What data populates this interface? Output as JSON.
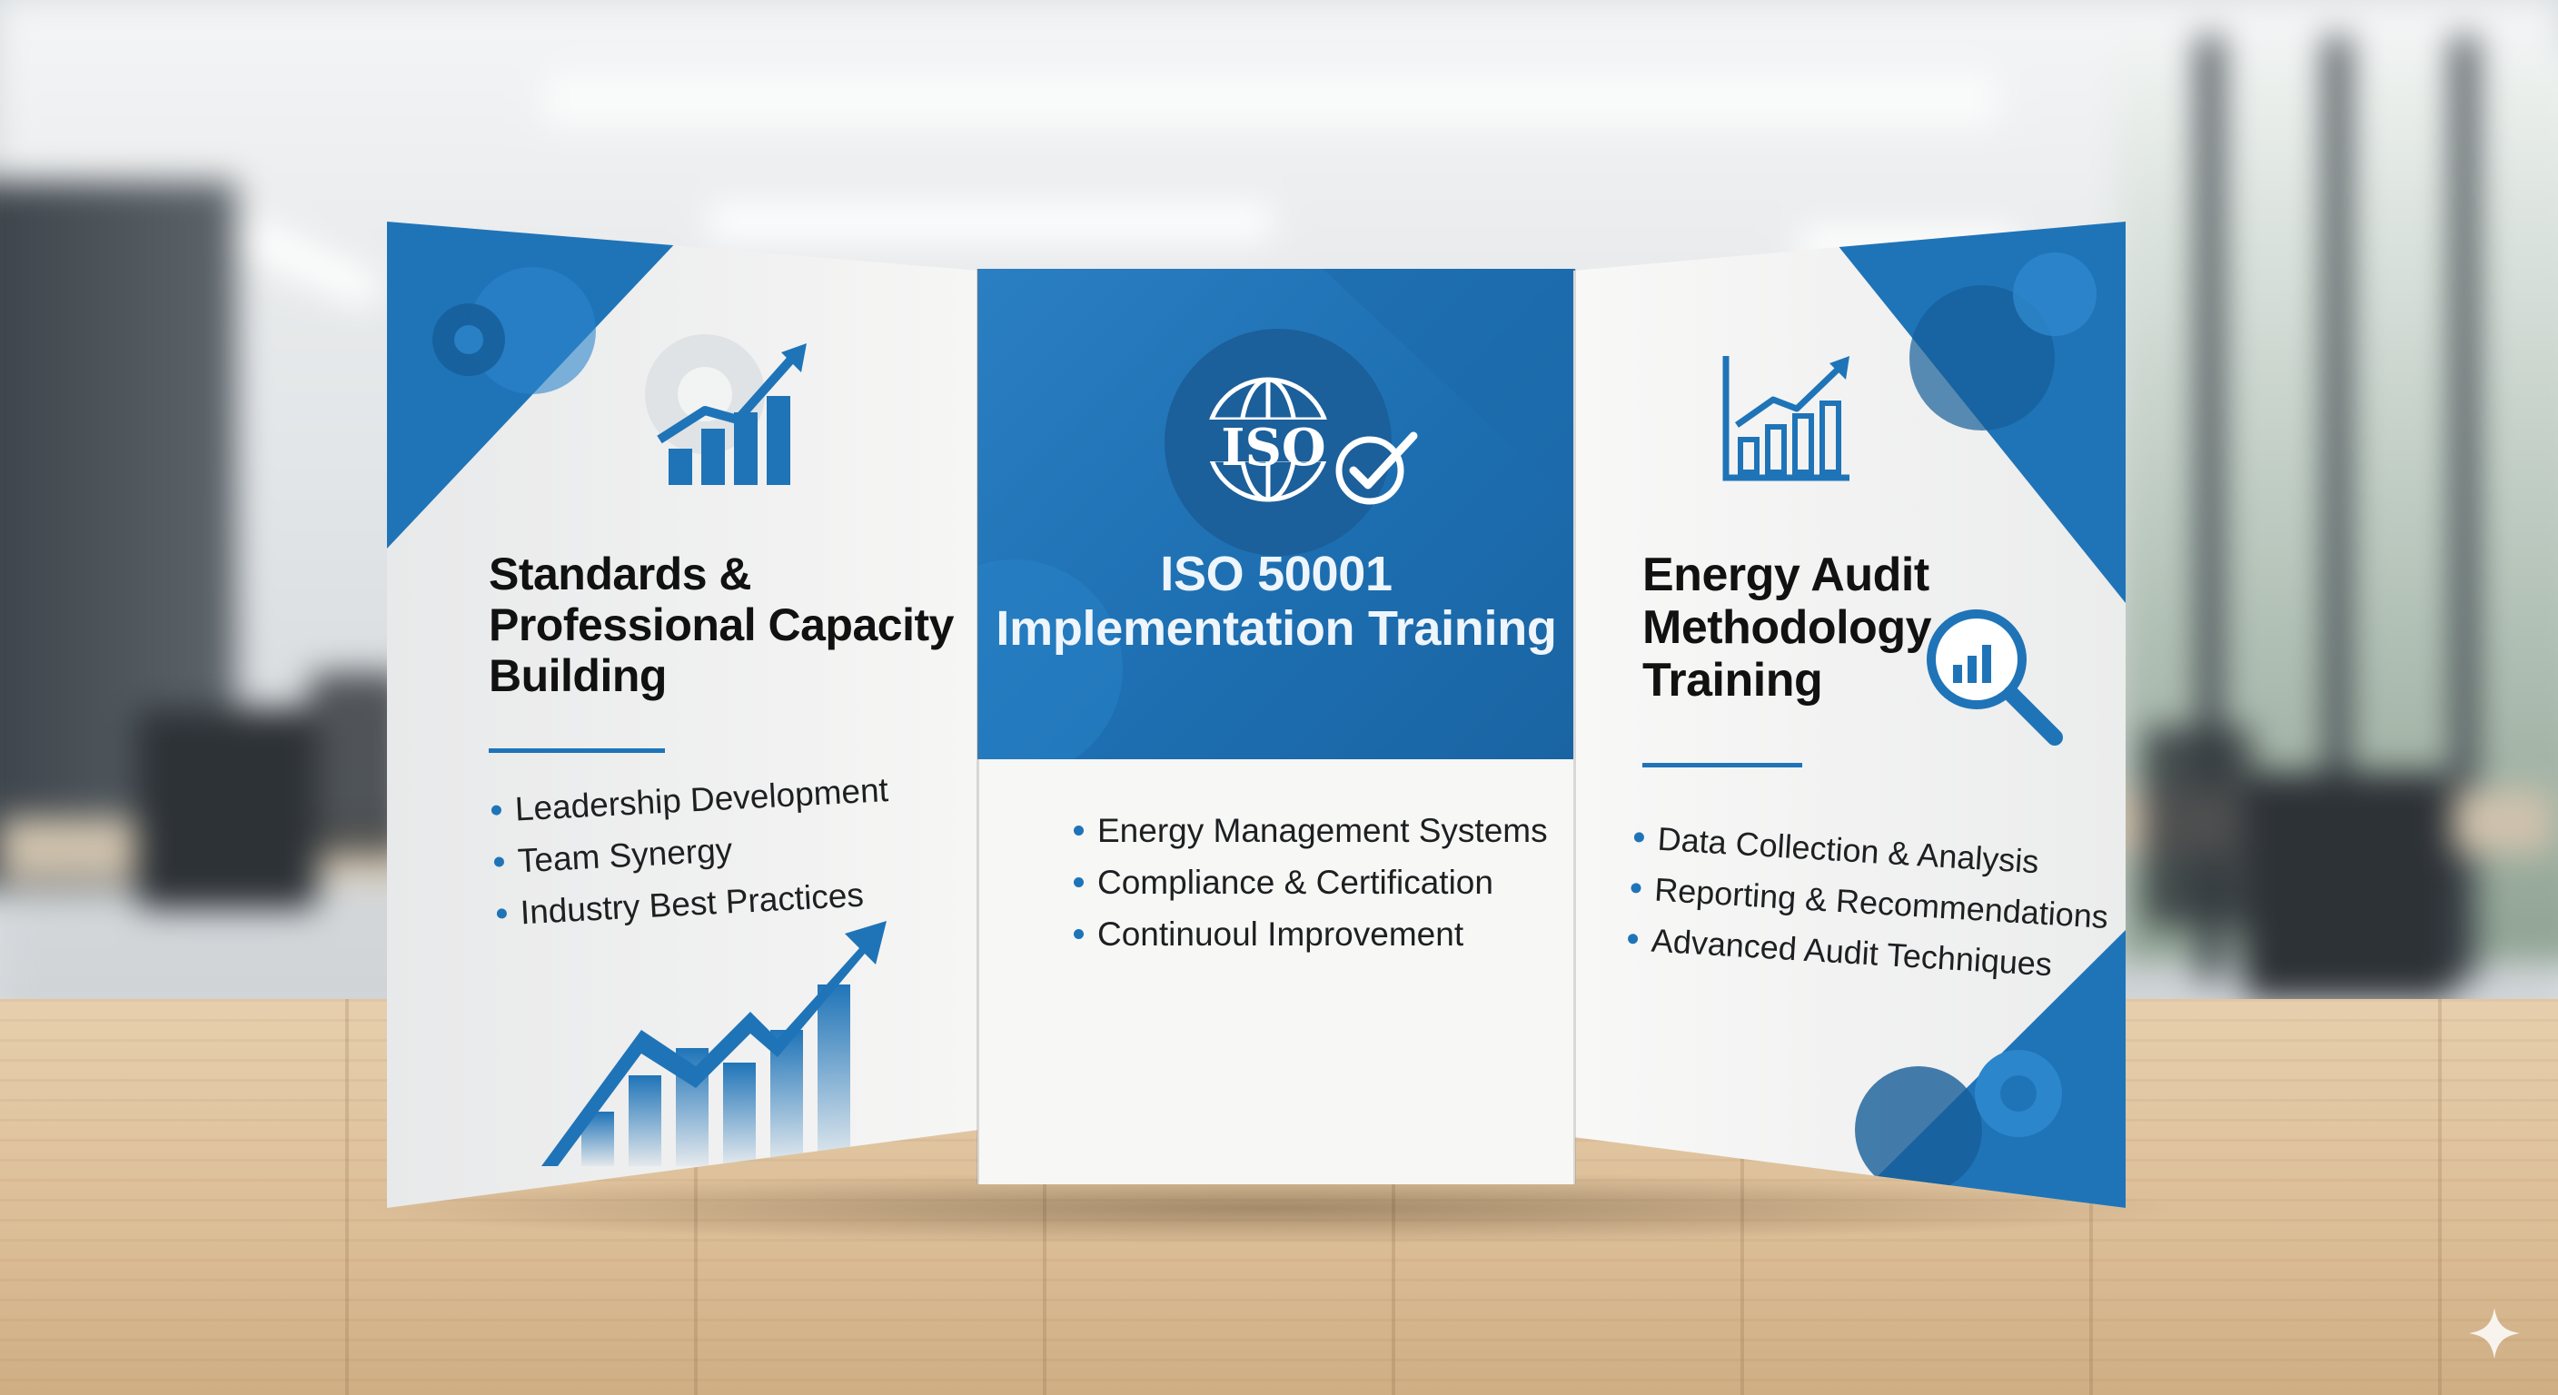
{
  "left_panel": {
    "title": "Standards & Professional Capacity Building",
    "bullets": [
      "Leadership Development",
      "Team Synergy",
      "Industry Best Practices"
    ],
    "icons": [
      "gear-icon",
      "bar-chart-up-icon",
      "growth-chart-icon"
    ]
  },
  "center_panel": {
    "logo_text": "ISO",
    "title": "ISO 50001 Implementation Training",
    "bullets": [
      "Energy Management Systems",
      "Compliance & Certification",
      "Continuoul Improvement"
    ],
    "icons": [
      "globe-icon",
      "checkmark-icon"
    ]
  },
  "right_panel": {
    "title": "Energy Audit Methodology Training",
    "bullets": [
      "Data Collection & Analysis",
      "Reporting & Recommendations",
      "Advanced Audit Techniques"
    ],
    "icons": [
      "line-chart-icon",
      "magnifier-chart-icon",
      "gear-icon"
    ]
  },
  "colors": {
    "accent": "#1f74b8",
    "accent_dark": "#1a64a3",
    "wood": "#dbbd96"
  }
}
